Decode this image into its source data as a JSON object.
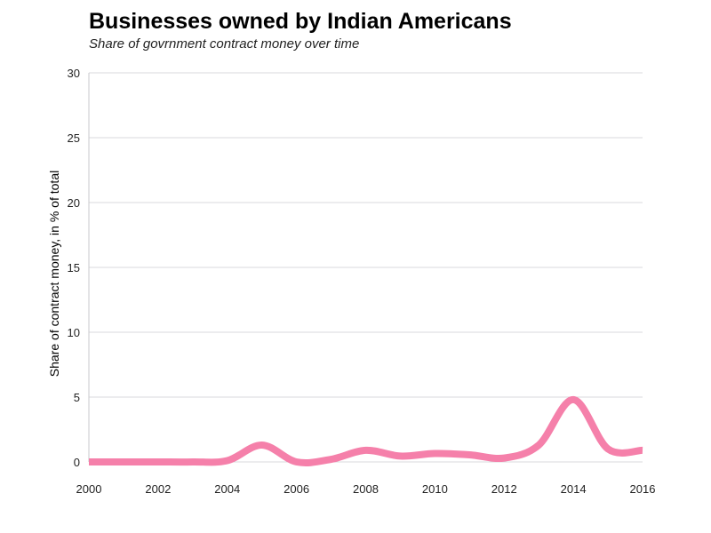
{
  "title": "Businesses owned by Indian Americans",
  "subtitle": "Share of govrnment contract money over time",
  "colors": {
    "series": "#f580aa",
    "grid": "#d8d8dc",
    "axis": "#c8c8cc"
  },
  "chart_data": {
    "type": "line",
    "title": "Businesses owned by Indian Americans",
    "subtitle": "Share of govrnment contract money over time",
    "xlabel": "",
    "ylabel": "Share of contract money, in % of total",
    "xlim": [
      2000,
      2016
    ],
    "ylim": [
      0,
      30
    ],
    "x_ticks": [
      "2000",
      "2002",
      "2004",
      "2006",
      "2008",
      "2010",
      "2012",
      "2014",
      "2016"
    ],
    "y_ticks": [
      "0",
      "5",
      "10",
      "15",
      "20",
      "25",
      "30"
    ],
    "grid": true,
    "legend": "none",
    "series": [
      {
        "x": [
          2000,
          2001,
          2002,
          2003,
          2004,
          2005,
          2006,
          2007,
          2008,
          2009,
          2010,
          2011,
          2012,
          2013,
          2014,
          2015,
          2016
        ],
        "values": [
          0.0,
          0.0,
          0.0,
          0.0,
          0.1,
          1.3,
          0.0,
          0.2,
          0.9,
          0.45,
          0.65,
          0.55,
          0.3,
          1.3,
          4.8,
          1.0,
          0.9
        ]
      }
    ]
  }
}
